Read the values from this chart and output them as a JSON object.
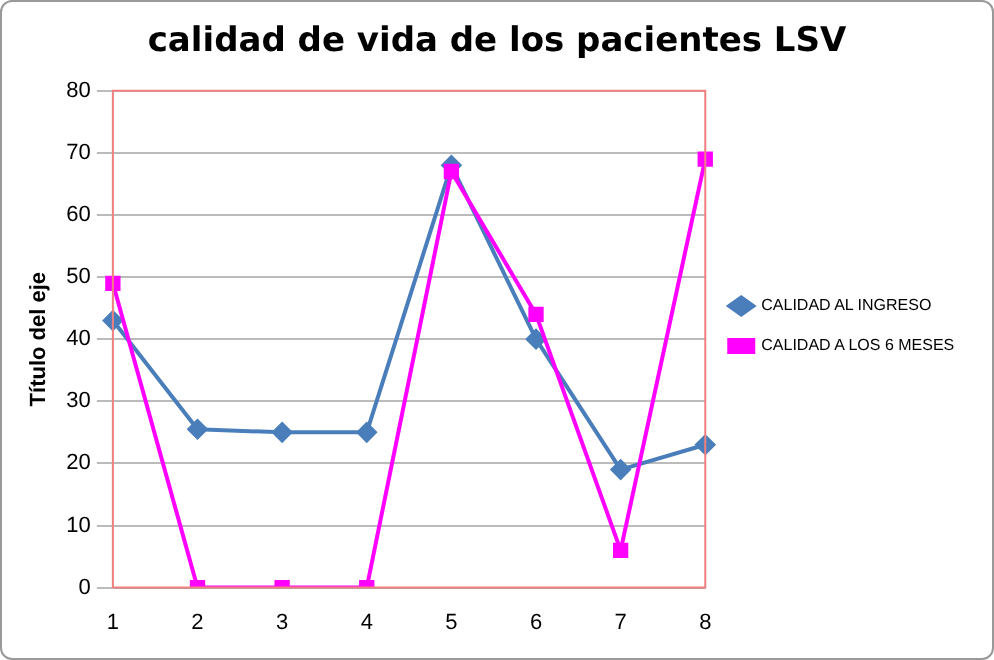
{
  "chart_data": {
    "type": "line",
    "title": "calidad de vida de los pacientes LSV",
    "ylabel": "Título del eje",
    "categories": [
      "1",
      "2",
      "3",
      "4",
      "5",
      "6",
      "7",
      "8"
    ],
    "series": [
      {
        "name": "CALIDAD AL INGRESO",
        "color": "#4a7ebb",
        "marker": "diamond",
        "values": [
          43,
          25.5,
          25,
          25,
          68,
          40,
          19,
          23
        ]
      },
      {
        "name": "CALIDAD A LOS 6 MESES",
        "color": "#ff00ff",
        "marker": "square",
        "values": [
          49,
          0,
          0,
          0,
          67,
          44,
          6,
          69
        ]
      }
    ],
    "ylim": [
      0,
      80
    ],
    "yticks": [
      0,
      10,
      20,
      30,
      40,
      50,
      60,
      70,
      80
    ],
    "grid": "y",
    "legend": "right"
  }
}
